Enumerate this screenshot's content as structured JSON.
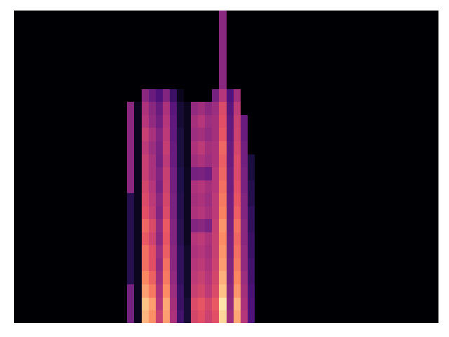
{
  "chart_data": {
    "type": "heatmap",
    "tick_labels": false,
    "xlim": [
      0,
      60
    ],
    "ylim": [
      0,
      24
    ],
    "zlim": [
      0,
      100
    ],
    "cells": [
      [
        0,
        0,
        0,
        0,
        0,
        0,
        0,
        0,
        0,
        0,
        0,
        0,
        0,
        0,
        0,
        0,
        35,
        5,
        85,
        77,
        55,
        80,
        48,
        22,
        10,
        58,
        62,
        56,
        62,
        92,
        45,
        82,
        50,
        25,
        0,
        0,
        0,
        0,
        0,
        0,
        0,
        0,
        0,
        0,
        0,
        0,
        0,
        0,
        0,
        0,
        0,
        0,
        0,
        0,
        0,
        0,
        0,
        0,
        0,
        0
      ],
      [
        0,
        0,
        0,
        0,
        0,
        0,
        0,
        0,
        0,
        0,
        0,
        0,
        0,
        0,
        0,
        0,
        35,
        5,
        88,
        80,
        50,
        82,
        46,
        20,
        10,
        60,
        64,
        58,
        65,
        95,
        42,
        85,
        48,
        25,
        0,
        0,
        0,
        0,
        0,
        0,
        0,
        0,
        0,
        0,
        0,
        0,
        0,
        0,
        0,
        0,
        0,
        0,
        0,
        0,
        0,
        0,
        0,
        0,
        0,
        0
      ],
      [
        0,
        0,
        0,
        0,
        0,
        0,
        0,
        0,
        0,
        0,
        0,
        0,
        0,
        0,
        0,
        0,
        35,
        5,
        80,
        72,
        48,
        76,
        44,
        20,
        8,
        55,
        58,
        52,
        60,
        88,
        40,
        78,
        46,
        24,
        0,
        0,
        0,
        0,
        0,
        0,
        0,
        0,
        0,
        0,
        0,
        0,
        0,
        0,
        0,
        0,
        0,
        0,
        0,
        0,
        0,
        0,
        0,
        0,
        0,
        0
      ],
      [
        0,
        0,
        0,
        0,
        0,
        0,
        0,
        0,
        0,
        0,
        0,
        0,
        0,
        0,
        0,
        0,
        15,
        5,
        75,
        67,
        45,
        72,
        42,
        18,
        8,
        52,
        55,
        50,
        58,
        84,
        38,
        75,
        44,
        22,
        0,
        0,
        0,
        0,
        0,
        0,
        0,
        0,
        0,
        0,
        0,
        0,
        0,
        0,
        0,
        0,
        0,
        0,
        0,
        0,
        0,
        0,
        0,
        0,
        0,
        0
      ],
      [
        0,
        0,
        0,
        0,
        0,
        0,
        0,
        0,
        0,
        0,
        0,
        0,
        0,
        0,
        0,
        0,
        15,
        5,
        70,
        62,
        42,
        70,
        40,
        18,
        8,
        50,
        52,
        48,
        56,
        80,
        38,
        72,
        42,
        22,
        0,
        0,
        0,
        0,
        0,
        0,
        0,
        0,
        0,
        0,
        0,
        0,
        0,
        0,
        0,
        0,
        0,
        0,
        0,
        0,
        0,
        0,
        0,
        0,
        0,
        0
      ],
      [
        0,
        0,
        0,
        0,
        0,
        0,
        0,
        0,
        0,
        0,
        0,
        0,
        0,
        0,
        0,
        0,
        15,
        5,
        70,
        62,
        44,
        66,
        40,
        18,
        8,
        48,
        50,
        46,
        55,
        78,
        36,
        70,
        42,
        20,
        0,
        0,
        0,
        0,
        0,
        0,
        0,
        0,
        0,
        0,
        0,
        0,
        0,
        0,
        0,
        0,
        0,
        0,
        0,
        0,
        0,
        0,
        0,
        0,
        0,
        0
      ],
      [
        0,
        0,
        0,
        0,
        0,
        0,
        0,
        0,
        0,
        0,
        0,
        0,
        0,
        0,
        0,
        0,
        15,
        5,
        65,
        57,
        40,
        64,
        38,
        16,
        6,
        50,
        52,
        48,
        55,
        76,
        36,
        68,
        40,
        20,
        0,
        0,
        0,
        0,
        0,
        0,
        0,
        0,
        0,
        0,
        0,
        0,
        0,
        0,
        0,
        0,
        0,
        0,
        0,
        0,
        0,
        0,
        0,
        0,
        0,
        0
      ],
      [
        0,
        0,
        0,
        0,
        0,
        0,
        0,
        0,
        0,
        0,
        0,
        0,
        0,
        0,
        0,
        0,
        15,
        5,
        68,
        60,
        42,
        65,
        38,
        16,
        6,
        38,
        40,
        36,
        54,
        78,
        35,
        70,
        40,
        18,
        0,
        0,
        0,
        0,
        0,
        0,
        0,
        0,
        0,
        0,
        0,
        0,
        0,
        0,
        0,
        0,
        0,
        0,
        0,
        0,
        0,
        0,
        0,
        0,
        0,
        0
      ],
      [
        0,
        0,
        0,
        0,
        0,
        0,
        0,
        0,
        0,
        0,
        0,
        0,
        0,
        0,
        0,
        0,
        15,
        5,
        62,
        54,
        38,
        60,
        36,
        15,
        6,
        48,
        50,
        46,
        52,
        74,
        34,
        66,
        38,
        18,
        0,
        0,
        0,
        0,
        0,
        0,
        0,
        0,
        0,
        0,
        0,
        0,
        0,
        0,
        0,
        0,
        0,
        0,
        0,
        0,
        0,
        0,
        0,
        0,
        0,
        0
      ],
      [
        0,
        0,
        0,
        0,
        0,
        0,
        0,
        0,
        0,
        0,
        0,
        0,
        0,
        0,
        0,
        0,
        15,
        5,
        60,
        52,
        40,
        58,
        36,
        15,
        6,
        46,
        48,
        44,
        52,
        72,
        34,
        64,
        38,
        15,
        0,
        0,
        0,
        0,
        0,
        0,
        0,
        0,
        0,
        0,
        0,
        0,
        0,
        0,
        0,
        0,
        0,
        0,
        0,
        0,
        0,
        0,
        0,
        0,
        0,
        0
      ],
      [
        0,
        0,
        0,
        0,
        0,
        0,
        0,
        0,
        0,
        0,
        0,
        0,
        0,
        0,
        0,
        0,
        40,
        5,
        58,
        50,
        36,
        56,
        34,
        14,
        6,
        48,
        50,
        46,
        50,
        70,
        33,
        62,
        36,
        15,
        0,
        0,
        0,
        0,
        0,
        0,
        0,
        0,
        0,
        0,
        0,
        0,
        0,
        0,
        0,
        0,
        0,
        0,
        0,
        0,
        0,
        0,
        0,
        0,
        0,
        0
      ],
      [
        0,
        0,
        0,
        0,
        0,
        0,
        0,
        0,
        0,
        0,
        0,
        0,
        0,
        0,
        0,
        0,
        40,
        5,
        55,
        47,
        38,
        55,
        34,
        14,
        6,
        35,
        36,
        33,
        50,
        68,
        33,
        60,
        36,
        12,
        0,
        0,
        0,
        0,
        0,
        0,
        0,
        0,
        0,
        0,
        0,
        0,
        0,
        0,
        0,
        0,
        0,
        0,
        0,
        0,
        0,
        0,
        0,
        0,
        0,
        0
      ],
      [
        0,
        0,
        0,
        0,
        0,
        0,
        0,
        0,
        0,
        0,
        0,
        0,
        0,
        0,
        0,
        0,
        40,
        5,
        55,
        47,
        35,
        52,
        32,
        12,
        5,
        45,
        48,
        44,
        48,
        66,
        32,
        60,
        34,
        12,
        0,
        0,
        0,
        0,
        0,
        0,
        0,
        0,
        0,
        0,
        0,
        0,
        0,
        0,
        0,
        0,
        0,
        0,
        0,
        0,
        0,
        0,
        0,
        0,
        0,
        0
      ],
      [
        0,
        0,
        0,
        0,
        0,
        0,
        0,
        0,
        0,
        0,
        0,
        0,
        0,
        0,
        0,
        0,
        40,
        5,
        52,
        44,
        36,
        54,
        32,
        12,
        5,
        48,
        52,
        46,
        48,
        68,
        32,
        58,
        34,
        0,
        0,
        0,
        0,
        0,
        0,
        0,
        0,
        0,
        0,
        0,
        0,
        0,
        0,
        0,
        0,
        0,
        0,
        0,
        0,
        0,
        0,
        0,
        0,
        0,
        0,
        0
      ],
      [
        0,
        0,
        0,
        0,
        0,
        0,
        0,
        0,
        0,
        0,
        0,
        0,
        0,
        0,
        0,
        0,
        40,
        5,
        55,
        47,
        38,
        52,
        30,
        12,
        5,
        44,
        46,
        42,
        46,
        64,
        30,
        56,
        32,
        0,
        0,
        0,
        0,
        0,
        0,
        0,
        0,
        0,
        0,
        0,
        0,
        0,
        0,
        0,
        0,
        0,
        0,
        0,
        0,
        0,
        0,
        0,
        0,
        0,
        0,
        0
      ],
      [
        0,
        0,
        0,
        0,
        0,
        0,
        0,
        0,
        0,
        0,
        0,
        0,
        0,
        0,
        0,
        0,
        40,
        5,
        50,
        42,
        34,
        50,
        30,
        10,
        5,
        46,
        50,
        44,
        46,
        62,
        30,
        55,
        32,
        0,
        0,
        0,
        0,
        0,
        0,
        0,
        0,
        0,
        0,
        0,
        0,
        0,
        0,
        0,
        0,
        0,
        0,
        0,
        0,
        0,
        0,
        0,
        0,
        0,
        0,
        0
      ],
      [
        0,
        0,
        0,
        0,
        0,
        0,
        0,
        0,
        0,
        0,
        0,
        0,
        0,
        0,
        0,
        0,
        40,
        5,
        48,
        40,
        32,
        48,
        28,
        10,
        5,
        42,
        45,
        40,
        44,
        60,
        28,
        52,
        0,
        0,
        0,
        0,
        0,
        0,
        0,
        0,
        0,
        0,
        0,
        0,
        0,
        0,
        0,
        0,
        0,
        0,
        0,
        0,
        0,
        0,
        0,
        0,
        0,
        0,
        0,
        0
      ],
      [
        0,
        0,
        0,
        0,
        0,
        0,
        0,
        0,
        0,
        0,
        0,
        0,
        0,
        0,
        0,
        0,
        0,
        0,
        40,
        32,
        25,
        38,
        20,
        5,
        0,
        0,
        0,
        0,
        35,
        50,
        25,
        45,
        0,
        0,
        0,
        0,
        0,
        0,
        0,
        0,
        0,
        0,
        0,
        0,
        0,
        0,
        0,
        0,
        0,
        0,
        0,
        0,
        0,
        0,
        0,
        0,
        0,
        0,
        0,
        0
      ],
      [
        0,
        0,
        0,
        0,
        0,
        0,
        0,
        0,
        0,
        0,
        0,
        0,
        0,
        0,
        0,
        0,
        0,
        0,
        0,
        0,
        0,
        0,
        0,
        0,
        0,
        0,
        0,
        0,
        0,
        40,
        0,
        0,
        0,
        0,
        0,
        0,
        0,
        0,
        0,
        0,
        0,
        0,
        0,
        0,
        0,
        0,
        0,
        0,
        0,
        0,
        0,
        0,
        0,
        0,
        0,
        0,
        0,
        0,
        0,
        0
      ],
      [
        0,
        0,
        0,
        0,
        0,
        0,
        0,
        0,
        0,
        0,
        0,
        0,
        0,
        0,
        0,
        0,
        0,
        0,
        0,
        0,
        0,
        0,
        0,
        0,
        0,
        0,
        0,
        0,
        0,
        40,
        0,
        0,
        0,
        0,
        0,
        0,
        0,
        0,
        0,
        0,
        0,
        0,
        0,
        0,
        0,
        0,
        0,
        0,
        0,
        0,
        0,
        0,
        0,
        0,
        0,
        0,
        0,
        0,
        0,
        0
      ],
      [
        0,
        0,
        0,
        0,
        0,
        0,
        0,
        0,
        0,
        0,
        0,
        0,
        0,
        0,
        0,
        0,
        0,
        0,
        0,
        0,
        0,
        0,
        0,
        0,
        0,
        0,
        0,
        0,
        0,
        40,
        0,
        0,
        0,
        0,
        0,
        0,
        0,
        0,
        0,
        0,
        0,
        0,
        0,
        0,
        0,
        0,
        0,
        0,
        0,
        0,
        0,
        0,
        0,
        0,
        0,
        0,
        0,
        0,
        0,
        0
      ],
      [
        0,
        0,
        0,
        0,
        0,
        0,
        0,
        0,
        0,
        0,
        0,
        0,
        0,
        0,
        0,
        0,
        0,
        0,
        0,
        0,
        0,
        0,
        0,
        0,
        0,
        0,
        0,
        0,
        0,
        40,
        0,
        0,
        0,
        0,
        0,
        0,
        0,
        0,
        0,
        0,
        0,
        0,
        0,
        0,
        0,
        0,
        0,
        0,
        0,
        0,
        0,
        0,
        0,
        0,
        0,
        0,
        0,
        0,
        0,
        0
      ],
      [
        0,
        0,
        0,
        0,
        0,
        0,
        0,
        0,
        0,
        0,
        0,
        0,
        0,
        0,
        0,
        0,
        0,
        0,
        0,
        0,
        0,
        0,
        0,
        0,
        0,
        0,
        0,
        0,
        0,
        40,
        0,
        0,
        0,
        0,
        0,
        0,
        0,
        0,
        0,
        0,
        0,
        0,
        0,
        0,
        0,
        0,
        0,
        0,
        0,
        0,
        0,
        0,
        0,
        0,
        0,
        0,
        0,
        0,
        0,
        0
      ],
      [
        0,
        0,
        0,
        0,
        0,
        0,
        0,
        0,
        0,
        0,
        0,
        0,
        0,
        0,
        0,
        0,
        0,
        0,
        0,
        0,
        0,
        0,
        0,
        0,
        0,
        0,
        0,
        0,
        0,
        40,
        0,
        0,
        0,
        0,
        0,
        0,
        0,
        0,
        0,
        0,
        0,
        0,
        0,
        0,
        0,
        0,
        0,
        0,
        0,
        0,
        0,
        0,
        0,
        0,
        0,
        0,
        0,
        0,
        0,
        0
      ]
    ]
  }
}
